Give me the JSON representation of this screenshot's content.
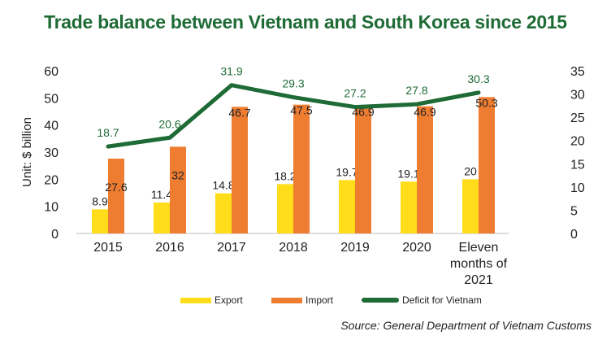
{
  "chart_data": {
    "type": "bar",
    "title": "Trade balance between Vietnam and South Korea since 2015",
    "ylabel": "Unit: $ billion",
    "categories": [
      "2015",
      "2016",
      "2017",
      "2018",
      "2019",
      "2020",
      "Eleven months of 2021"
    ],
    "category_lines": [
      [
        "2015"
      ],
      [
        "2016"
      ],
      [
        "2017"
      ],
      [
        "2018"
      ],
      [
        "2019"
      ],
      [
        "2020"
      ],
      [
        "Eleven",
        "months of",
        "2021"
      ]
    ],
    "ylim": [
      0,
      60
    ],
    "y_ticks": [
      0,
      10,
      20,
      30,
      40,
      50,
      60
    ],
    "y2lim": [
      0,
      35
    ],
    "y2_ticks": [
      0,
      5,
      10,
      15,
      20,
      25,
      30,
      35
    ],
    "series": [
      {
        "name": "Export",
        "type": "bar",
        "axis": "left",
        "color": "#ffdd1a",
        "values": [
          8.9,
          11.4,
          14.8,
          18.2,
          19.7,
          19.1,
          20
        ]
      },
      {
        "name": "Import",
        "type": "bar",
        "axis": "left",
        "color": "#ee7d31",
        "values": [
          27.6,
          32,
          46.7,
          47.5,
          46.9,
          46.9,
          50.3
        ]
      },
      {
        "name": "Deficit for Vietnam",
        "type": "line",
        "axis": "right",
        "color": "#1e6b35",
        "values": [
          18.7,
          20.6,
          31.9,
          29.3,
          27.2,
          27.8,
          30.3
        ]
      }
    ],
    "legend": "bottom",
    "grid": false
  },
  "source": "Source: General Department of Vietnam Customs"
}
